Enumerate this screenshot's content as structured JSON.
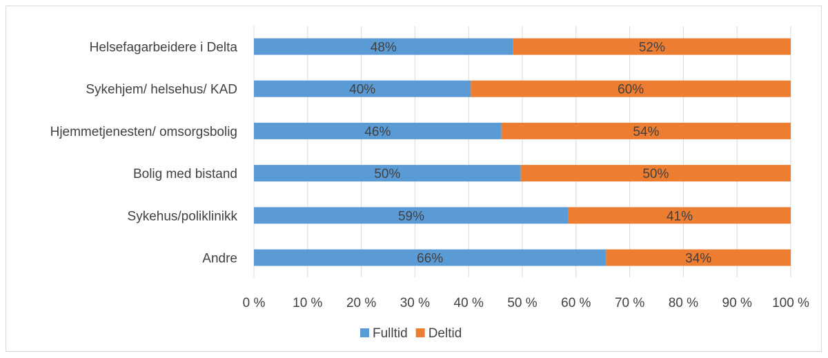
{
  "chart_data": {
    "type": "bar",
    "orientation": "horizontal",
    "stacked": "percent",
    "categories": [
      "Helsefagarbeidere i Delta",
      "Sykehjem/ helsehus/ KAD",
      "Hjemmetjenesten/ omsorgsbolig",
      "Bolig med bistand",
      "Sykehus/poliklinikk",
      "Andre"
    ],
    "series": [
      {
        "name": "Fulltid",
        "color": "#5b9bd5",
        "values": [
          48.3,
          40.4,
          46.1,
          49.7,
          58.6,
          65.6
        ],
        "labels": [
          "48%",
          "40%",
          "46%",
          "50%",
          "59%",
          "66%"
        ]
      },
      {
        "name": "Deltid",
        "color": "#ed7d31",
        "values": [
          51.7,
          59.6,
          53.9,
          50.3,
          41.4,
          34.4
        ],
        "labels": [
          "52%",
          "60%",
          "54%",
          "50%",
          "41%",
          "34%"
        ]
      }
    ],
    "xlim": [
      0,
      100
    ],
    "xticks": [
      "0 %",
      "10 %",
      "20 %",
      "30 %",
      "40 %",
      "50 %",
      "60 %",
      "70 %",
      "80 %",
      "90 %",
      "100 %"
    ],
    "grid": true,
    "legend_position": "bottom"
  }
}
